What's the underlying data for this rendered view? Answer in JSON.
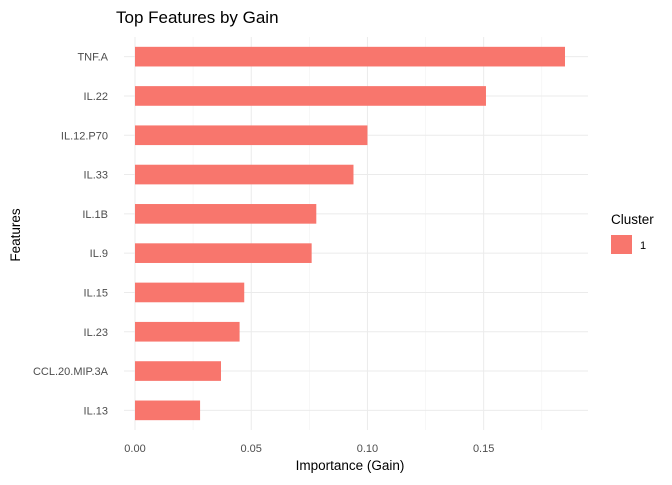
{
  "chart_data": {
    "type": "bar",
    "orientation": "horizontal",
    "title": "Top Features by Gain",
    "xlabel": "Importance (Gain)",
    "ylabel": "Features",
    "categories": [
      "TNF.A",
      "IL.22",
      "IL.12.P70",
      "IL.33",
      "IL.1B",
      "IL.9",
      "IL.15",
      "IL.23",
      "CCL.20.MIP.3A",
      "IL.13"
    ],
    "series": [
      {
        "name": "1",
        "color": "#F8766D",
        "values": [
          0.185,
          0.151,
          0.1,
          0.094,
          0.078,
          0.076,
          0.047,
          0.045,
          0.037,
          0.028
        ]
      }
    ],
    "xlim": [
      0,
      0.19
    ],
    "x_ticks": [
      0.0,
      0.05,
      0.1,
      0.15
    ],
    "x_tick_labels": [
      "0.00",
      "0.05",
      "0.10",
      "0.15"
    ],
    "grid": true,
    "legend": {
      "title": "Cluster",
      "placement": "right",
      "entries": [
        {
          "label": "1",
          "color": "#F8766D"
        }
      ]
    }
  }
}
